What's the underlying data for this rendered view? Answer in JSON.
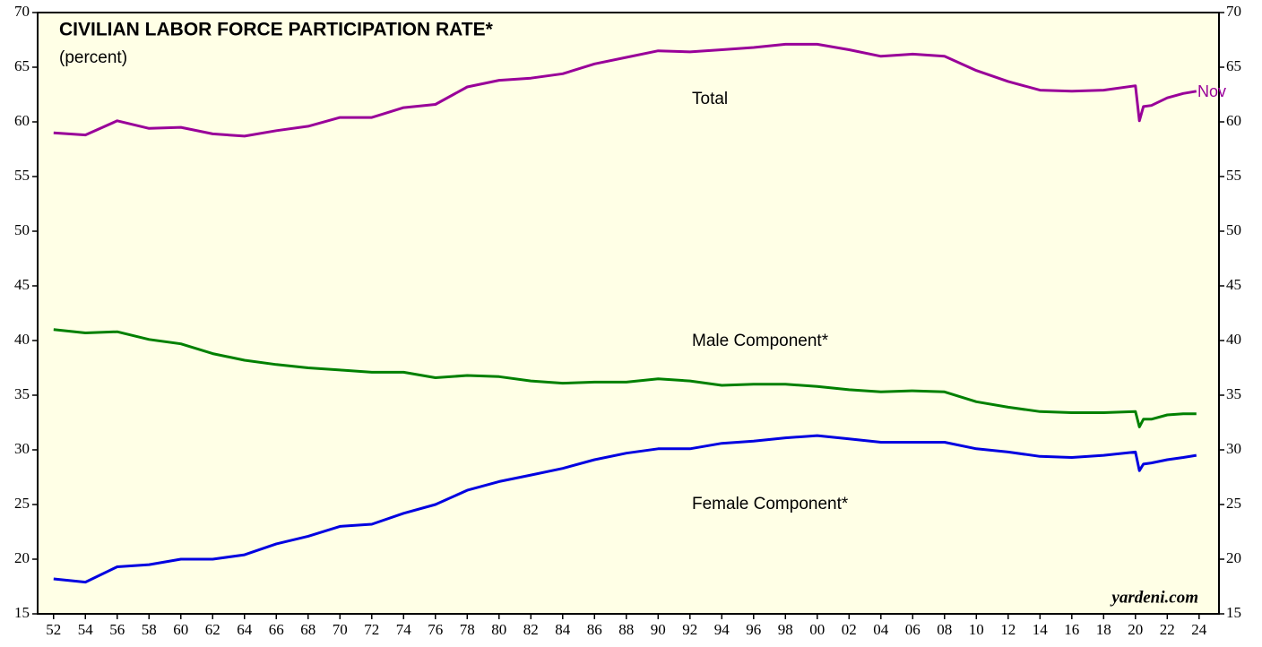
{
  "chart_data": {
    "type": "line",
    "title": "CIVILIAN LABOR FORCE PARTICIPATION RATE*",
    "subtitle": "(percent)",
    "x": [
      1952,
      1954,
      1956,
      1958,
      1960,
      1962,
      1964,
      1966,
      1968,
      1970,
      1972,
      1974,
      1976,
      1978,
      1980,
      1982,
      1984,
      1986,
      1988,
      1990,
      1992,
      1994,
      1996,
      1998,
      2000,
      2002,
      2004,
      2006,
      2008,
      2010,
      2012,
      2014,
      2016,
      2018,
      2020.0,
      2020.25,
      2020.5,
      2021,
      2022,
      2023,
      2023.83
    ],
    "series": [
      {
        "name": "Total",
        "color": "#990099",
        "values": [
          59.0,
          58.8,
          60.1,
          59.4,
          59.5,
          58.9,
          58.7,
          59.2,
          59.6,
          60.4,
          60.4,
          61.3,
          61.6,
          63.2,
          63.8,
          64.0,
          64.4,
          65.3,
          65.9,
          66.5,
          66.4,
          66.6,
          66.8,
          67.1,
          67.1,
          66.6,
          66.0,
          66.2,
          66.0,
          64.7,
          63.7,
          62.9,
          62.8,
          62.9,
          63.3,
          60.1,
          61.4,
          61.5,
          62.2,
          62.6,
          62.8
        ]
      },
      {
        "name": "Male Component*",
        "color": "#008000",
        "values": [
          41.0,
          40.7,
          40.8,
          40.1,
          39.7,
          38.8,
          38.2,
          37.8,
          37.5,
          37.3,
          37.1,
          37.1,
          36.6,
          36.8,
          36.7,
          36.3,
          36.1,
          36.2,
          36.2,
          36.5,
          36.3,
          35.9,
          36.0,
          36.0,
          35.8,
          35.5,
          35.3,
          35.4,
          35.3,
          34.4,
          33.9,
          33.5,
          33.4,
          33.4,
          33.5,
          32.1,
          32.8,
          32.8,
          33.2,
          33.3,
          33.3
        ]
      },
      {
        "name": "Female Component*",
        "color": "#0000e0",
        "values": [
          18.2,
          17.9,
          19.3,
          19.5,
          20.0,
          20.0,
          20.4,
          21.4,
          22.1,
          23.0,
          23.2,
          24.2,
          25.0,
          26.3,
          27.1,
          27.7,
          28.3,
          29.1,
          29.7,
          30.1,
          30.1,
          30.6,
          30.8,
          31.1,
          31.3,
          31.0,
          30.7,
          30.7,
          30.7,
          30.1,
          29.8,
          29.4,
          29.3,
          29.5,
          29.8,
          28.1,
          28.7,
          28.8,
          29.1,
          29.3,
          29.5
        ]
      }
    ],
    "annotations": [
      "Nov",
      "yardeni.com"
    ],
    "xlim": [
      1951,
      2025.25
    ],
    "xticks": [
      {
        "value": 1952,
        "label": "52"
      },
      {
        "value": 1954,
        "label": "54"
      },
      {
        "value": 1956,
        "label": "56"
      },
      {
        "value": 1958,
        "label": "58"
      },
      {
        "value": 1960,
        "label": "60"
      },
      {
        "value": 1962,
        "label": "62"
      },
      {
        "value": 1964,
        "label": "64"
      },
      {
        "value": 1966,
        "label": "66"
      },
      {
        "value": 1968,
        "label": "68"
      },
      {
        "value": 1970,
        "label": "70"
      },
      {
        "value": 1972,
        "label": "72"
      },
      {
        "value": 1974,
        "label": "74"
      },
      {
        "value": 1976,
        "label": "76"
      },
      {
        "value": 1978,
        "label": "78"
      },
      {
        "value": 1980,
        "label": "80"
      },
      {
        "value": 1982,
        "label": "82"
      },
      {
        "value": 1984,
        "label": "84"
      },
      {
        "value": 1986,
        "label": "86"
      },
      {
        "value": 1988,
        "label": "88"
      },
      {
        "value": 1990,
        "label": "90"
      },
      {
        "value": 1992,
        "label": "92"
      },
      {
        "value": 1994,
        "label": "94"
      },
      {
        "value": 1996,
        "label": "96"
      },
      {
        "value": 1998,
        "label": "98"
      },
      {
        "value": 2000,
        "label": "00"
      },
      {
        "value": 2002,
        "label": "02"
      },
      {
        "value": 2004,
        "label": "04"
      },
      {
        "value": 2006,
        "label": "06"
      },
      {
        "value": 2008,
        "label": "08"
      },
      {
        "value": 2010,
        "label": "10"
      },
      {
        "value": 2012,
        "label": "12"
      },
      {
        "value": 2014,
        "label": "14"
      },
      {
        "value": 2016,
        "label": "16"
      },
      {
        "value": 2018,
        "label": "18"
      },
      {
        "value": 2020,
        "label": "20"
      },
      {
        "value": 2022,
        "label": "22"
      },
      {
        "value": 2024,
        "label": "24"
      }
    ],
    "ylim": [
      15,
      70
    ],
    "yticks": [
      15,
      20,
      25,
      30,
      35,
      40,
      45,
      50,
      55,
      60,
      65,
      70
    ],
    "y2lim": [
      15,
      70
    ],
    "y2ticks": [
      15,
      20,
      25,
      30,
      35,
      40,
      45,
      50,
      55,
      60,
      65,
      70
    ],
    "grid": false
  }
}
